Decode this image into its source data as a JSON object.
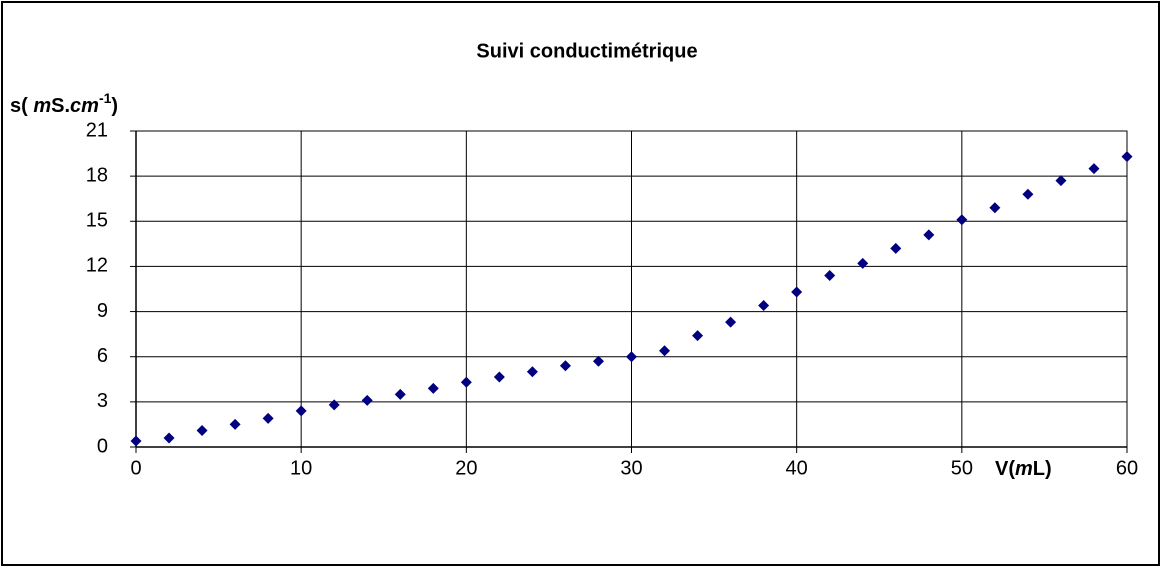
{
  "chart_data": {
    "type": "scatter",
    "title": "Suivi conductimétrique",
    "y_label": [
      "s( ",
      "m",
      "S.",
      "cm",
      "-1",
      ")"
    ],
    "x_label": [
      "V(",
      "m",
      "L)"
    ],
    "x": [
      0,
      2,
      4,
      6,
      8,
      10,
      12,
      14,
      16,
      18,
      20,
      22,
      24,
      26,
      28,
      30,
      32,
      34,
      36,
      38,
      40,
      42,
      44,
      46,
      48,
      50,
      52,
      54,
      56,
      58,
      60
    ],
    "values": [
      0.4,
      0.6,
      1.1,
      1.5,
      1.9,
      2.4,
      2.8,
      3.1,
      3.5,
      3.9,
      4.3,
      4.65,
      5.0,
      5.4,
      5.7,
      6.0,
      6.4,
      7.4,
      8.3,
      9.4,
      10.3,
      11.4,
      12.2,
      13.2,
      14.1,
      15.1,
      15.9,
      16.8,
      17.7,
      18.5,
      19.3
    ],
    "color": "#000080",
    "xlim": [
      0,
      60
    ],
    "xticks": [
      0,
      10,
      20,
      30,
      40,
      50,
      60
    ],
    "ylim": [
      0,
      21
    ],
    "yticks": [
      0,
      3,
      6,
      9,
      12,
      15,
      18,
      21
    ],
    "grid": true
  }
}
